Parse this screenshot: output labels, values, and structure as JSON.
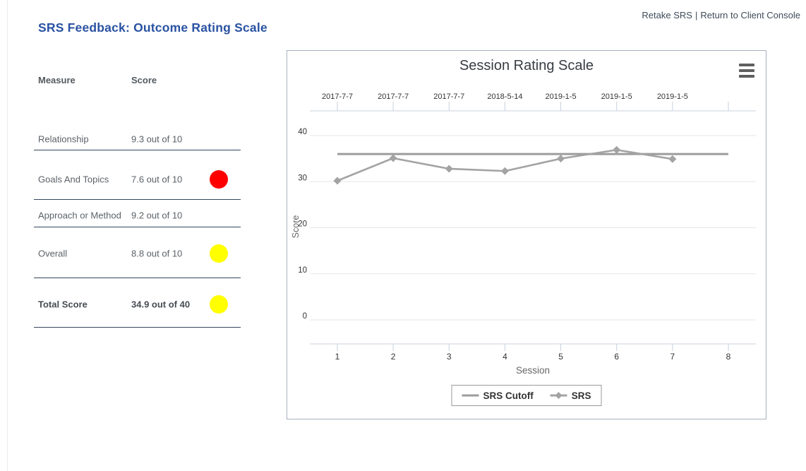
{
  "page": {
    "title": "SRS Feedback: Outcome Rating Scale",
    "nav": {
      "retake_label": "Retake SRS",
      "separator": "|",
      "return_label": "Return to Client Console"
    }
  },
  "scores": {
    "headers": {
      "measure": "Measure",
      "score": "Score"
    },
    "rows": [
      {
        "measure": "Relationship",
        "score": "9.3 out of 10",
        "dot": null,
        "bold": false
      },
      {
        "measure": "Goals And Topics",
        "score": "7.6 out of 10",
        "dot": "red",
        "bold": false
      },
      {
        "measure": "Approach or Method",
        "score": "9.2 out of 10",
        "dot": null,
        "bold": false
      },
      {
        "measure": "Overall",
        "score": "8.8 out of 10",
        "dot": "yellow",
        "bold": false
      },
      {
        "measure": "Total Score",
        "score": "34.9 out of 40",
        "dot": "yellow",
        "bold": true
      }
    ],
    "dot_colors": {
      "red": "#ff0000",
      "yellow": "#ffff00"
    }
  },
  "chart_data": {
    "type": "line",
    "title": "Session Rating Scale",
    "xlabel": "Session",
    "ylabel": "Score",
    "x_ticks": [
      1,
      2,
      3,
      4,
      5,
      6,
      7,
      8
    ],
    "top_axis_labels": [
      "2017-7-7",
      "2017-7-7",
      "2017-7-7",
      "2018-5-14",
      "2019-1-5",
      "2019-1-5",
      "2019-1-5"
    ],
    "y_ticks": [
      0,
      10,
      20,
      30,
      40
    ],
    "ylim": [
      0,
      40
    ],
    "grid": true,
    "legend_position": "bottom",
    "menu_icon": "hamburger",
    "series": [
      {
        "name": "SRS Cutoff",
        "marker": "none",
        "color": "#9c9c9c",
        "x": [
          1,
          8
        ],
        "values": [
          36,
          36
        ]
      },
      {
        "name": "SRS",
        "marker": "diamond",
        "color": "#a3a3a3",
        "x": [
          1,
          2,
          3,
          4,
          5,
          6,
          7
        ],
        "values": [
          30.2,
          35.1,
          32.8,
          32.3,
          35.0,
          36.9,
          34.9
        ]
      }
    ]
  }
}
